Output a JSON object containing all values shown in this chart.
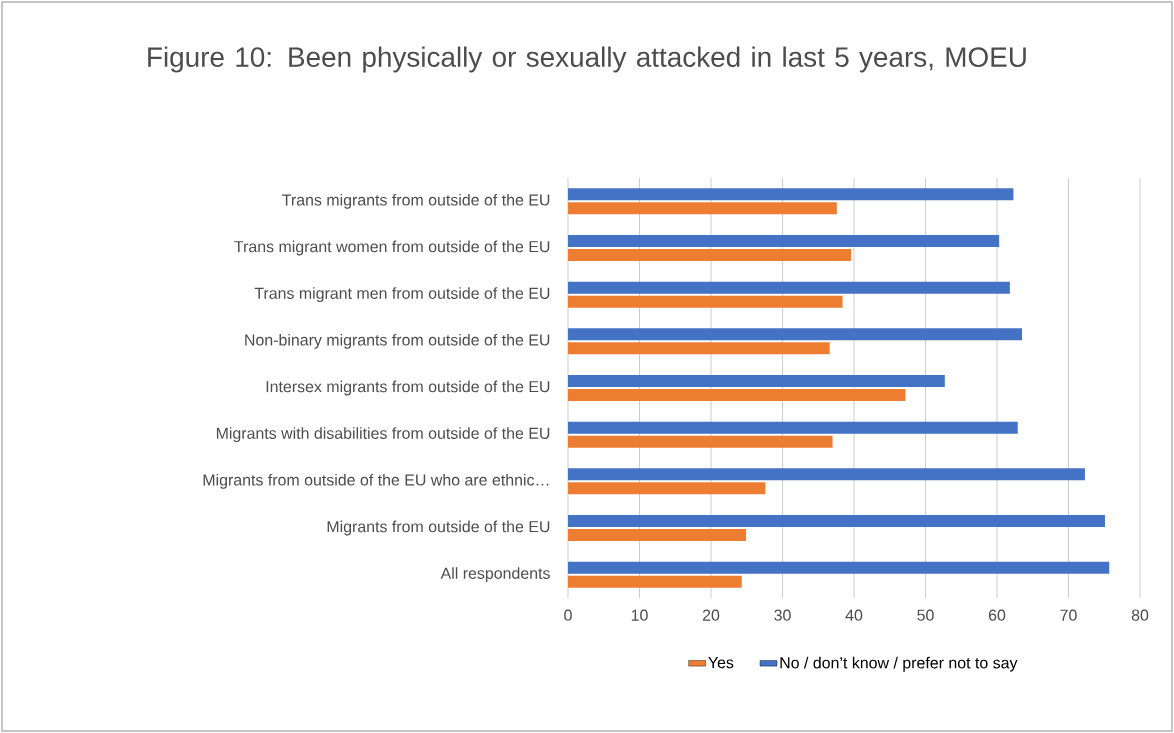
{
  "chart_data": {
    "type": "bar",
    "orientation": "horizontal",
    "title": "Figure 10: Been physically or sexually attacked in last 5 years, MOEU",
    "categories": [
      "Trans migrants from outside of the EU",
      "Trans migrant women from outside of the EU",
      "Trans migrant men from outside of the EU",
      "Non-binary migrants from outside of the EU",
      "Intersex migrants from outside of the EU",
      "Migrants with disabilities from outside of the EU",
      "Migrants from outside of the EU who are ethnic…",
      "Migrants from outside of the EU",
      "All respondents"
    ],
    "series": [
      {
        "name": "Yes",
        "color": "#ed7d31",
        "values": [
          37.6,
          39.6,
          38.4,
          36.6,
          47.2,
          37.0,
          27.6,
          24.9,
          24.3
        ]
      },
      {
        "name": "No / don’t know / prefer not to say",
        "color": "#4472c4",
        "values": [
          62.3,
          60.3,
          61.8,
          63.5,
          52.7,
          62.9,
          72.3,
          75.1,
          75.7
        ]
      }
    ],
    "xlim": [
      0,
      80
    ],
    "xticks": [
      0,
      10,
      20,
      30,
      40,
      50,
      60,
      70,
      80
    ],
    "grid": "x",
    "legend": "bottom"
  }
}
